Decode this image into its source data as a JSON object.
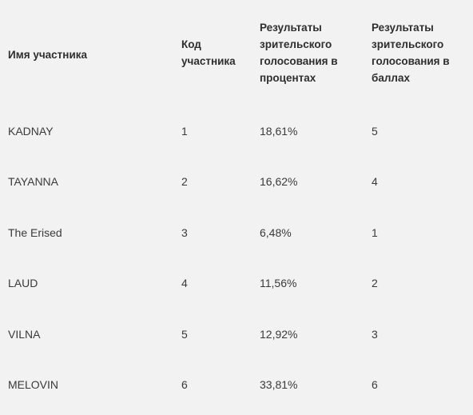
{
  "table": {
    "headers": [
      "Имя участника",
      "Код участника",
      "Результаты зрительского голосования в процентах",
      "Результаты зрительского голосования в баллах"
    ],
    "rows": [
      [
        "KADNAY",
        "1",
        "18,61%",
        "5"
      ],
      [
        "TAYANNA",
        "2",
        "16,62%",
        "4"
      ],
      [
        "The Erised",
        "3",
        "6,48%",
        "1"
      ],
      [
        "LAUD",
        "4",
        "11,56%",
        "2"
      ],
      [
        "VILNA",
        "5",
        "12,92%",
        "3"
      ],
      [
        "MELOVIN",
        "6",
        "33,81%",
        "6"
      ]
    ]
  }
}
